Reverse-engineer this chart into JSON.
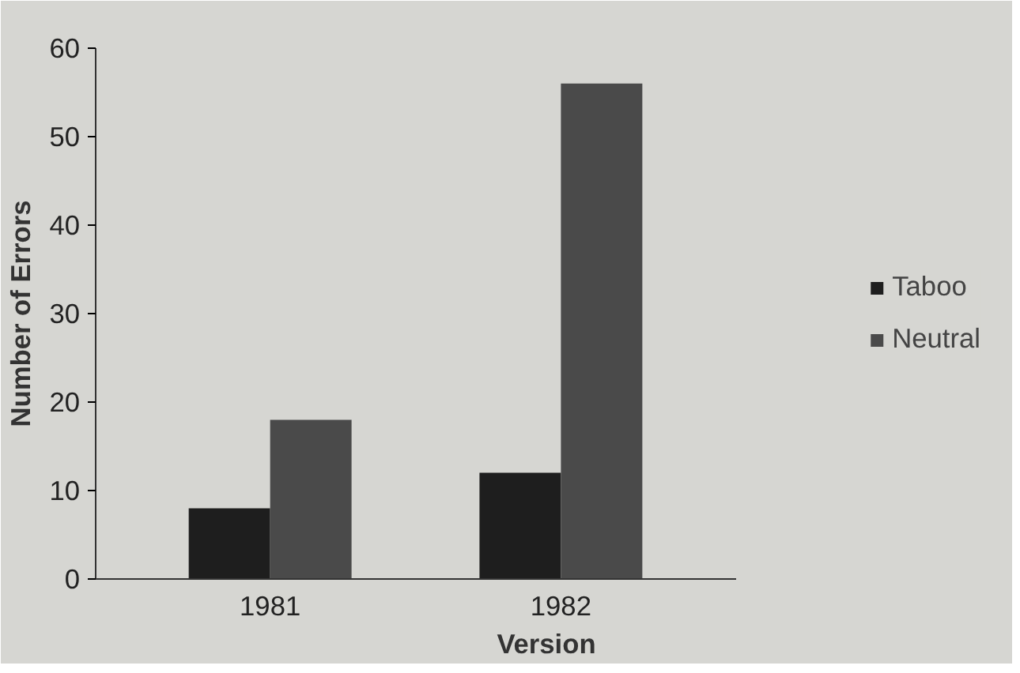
{
  "chart_data": {
    "type": "bar",
    "xlabel": "Version",
    "ylabel": "Number of Errors",
    "categories": [
      "1981",
      "1982"
    ],
    "series": [
      {
        "name": "Taboo",
        "color": "#1e1e1e",
        "values": [
          8,
          12
        ]
      },
      {
        "name": "Neutral",
        "color": "#4a4a4a",
        "values": [
          18,
          56
        ]
      }
    ],
    "ylim": [
      0,
      60
    ],
    "yticks": [
      0,
      10,
      20,
      30,
      40,
      50,
      60
    ],
    "grid": false,
    "legend": "right"
  }
}
